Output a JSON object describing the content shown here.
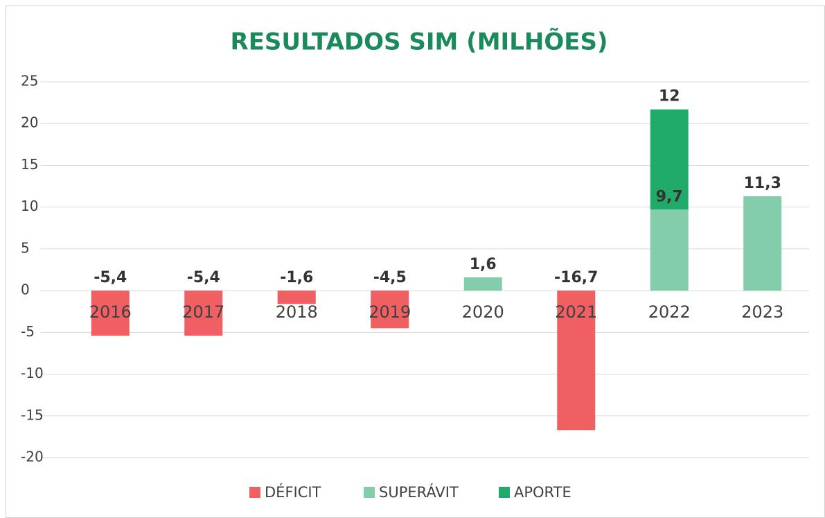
{
  "chart_data": {
    "type": "bar",
    "stacked": true,
    "title": "RESULTADOS SIM (MILHÕES)",
    "categories": [
      "2016",
      "2017",
      "2018",
      "2019",
      "2020",
      "2021",
      "2022",
      "2023"
    ],
    "series": [
      {
        "name": "DÉFICIT",
        "color": "#f05f61",
        "values": [
          -5.4,
          -5.4,
          -1.6,
          -4.5,
          null,
          -16.7,
          null,
          null
        ],
        "value_labels": [
          "-5,4",
          "-5,4",
          "-1,6",
          "-4,5",
          null,
          "-16,7",
          null,
          null
        ]
      },
      {
        "name": "SUPERÁVIT",
        "color": "#84cdab",
        "values": [
          null,
          null,
          null,
          null,
          1.6,
          null,
          9.7,
          11.3
        ],
        "value_labels": [
          null,
          null,
          null,
          null,
          "1,6",
          null,
          "9,7",
          "11,3"
        ]
      },
      {
        "name": "APORTE",
        "color": "#21ab6b",
        "values": [
          null,
          null,
          null,
          null,
          null,
          null,
          12,
          null
        ]
      }
    ],
    "ylim": [
      -20,
      25
    ],
    "yticks": [
      -20,
      -15,
      -10,
      -5,
      0,
      5,
      10,
      15,
      20,
      25
    ],
    "grid": true,
    "legend": "bottom"
  }
}
